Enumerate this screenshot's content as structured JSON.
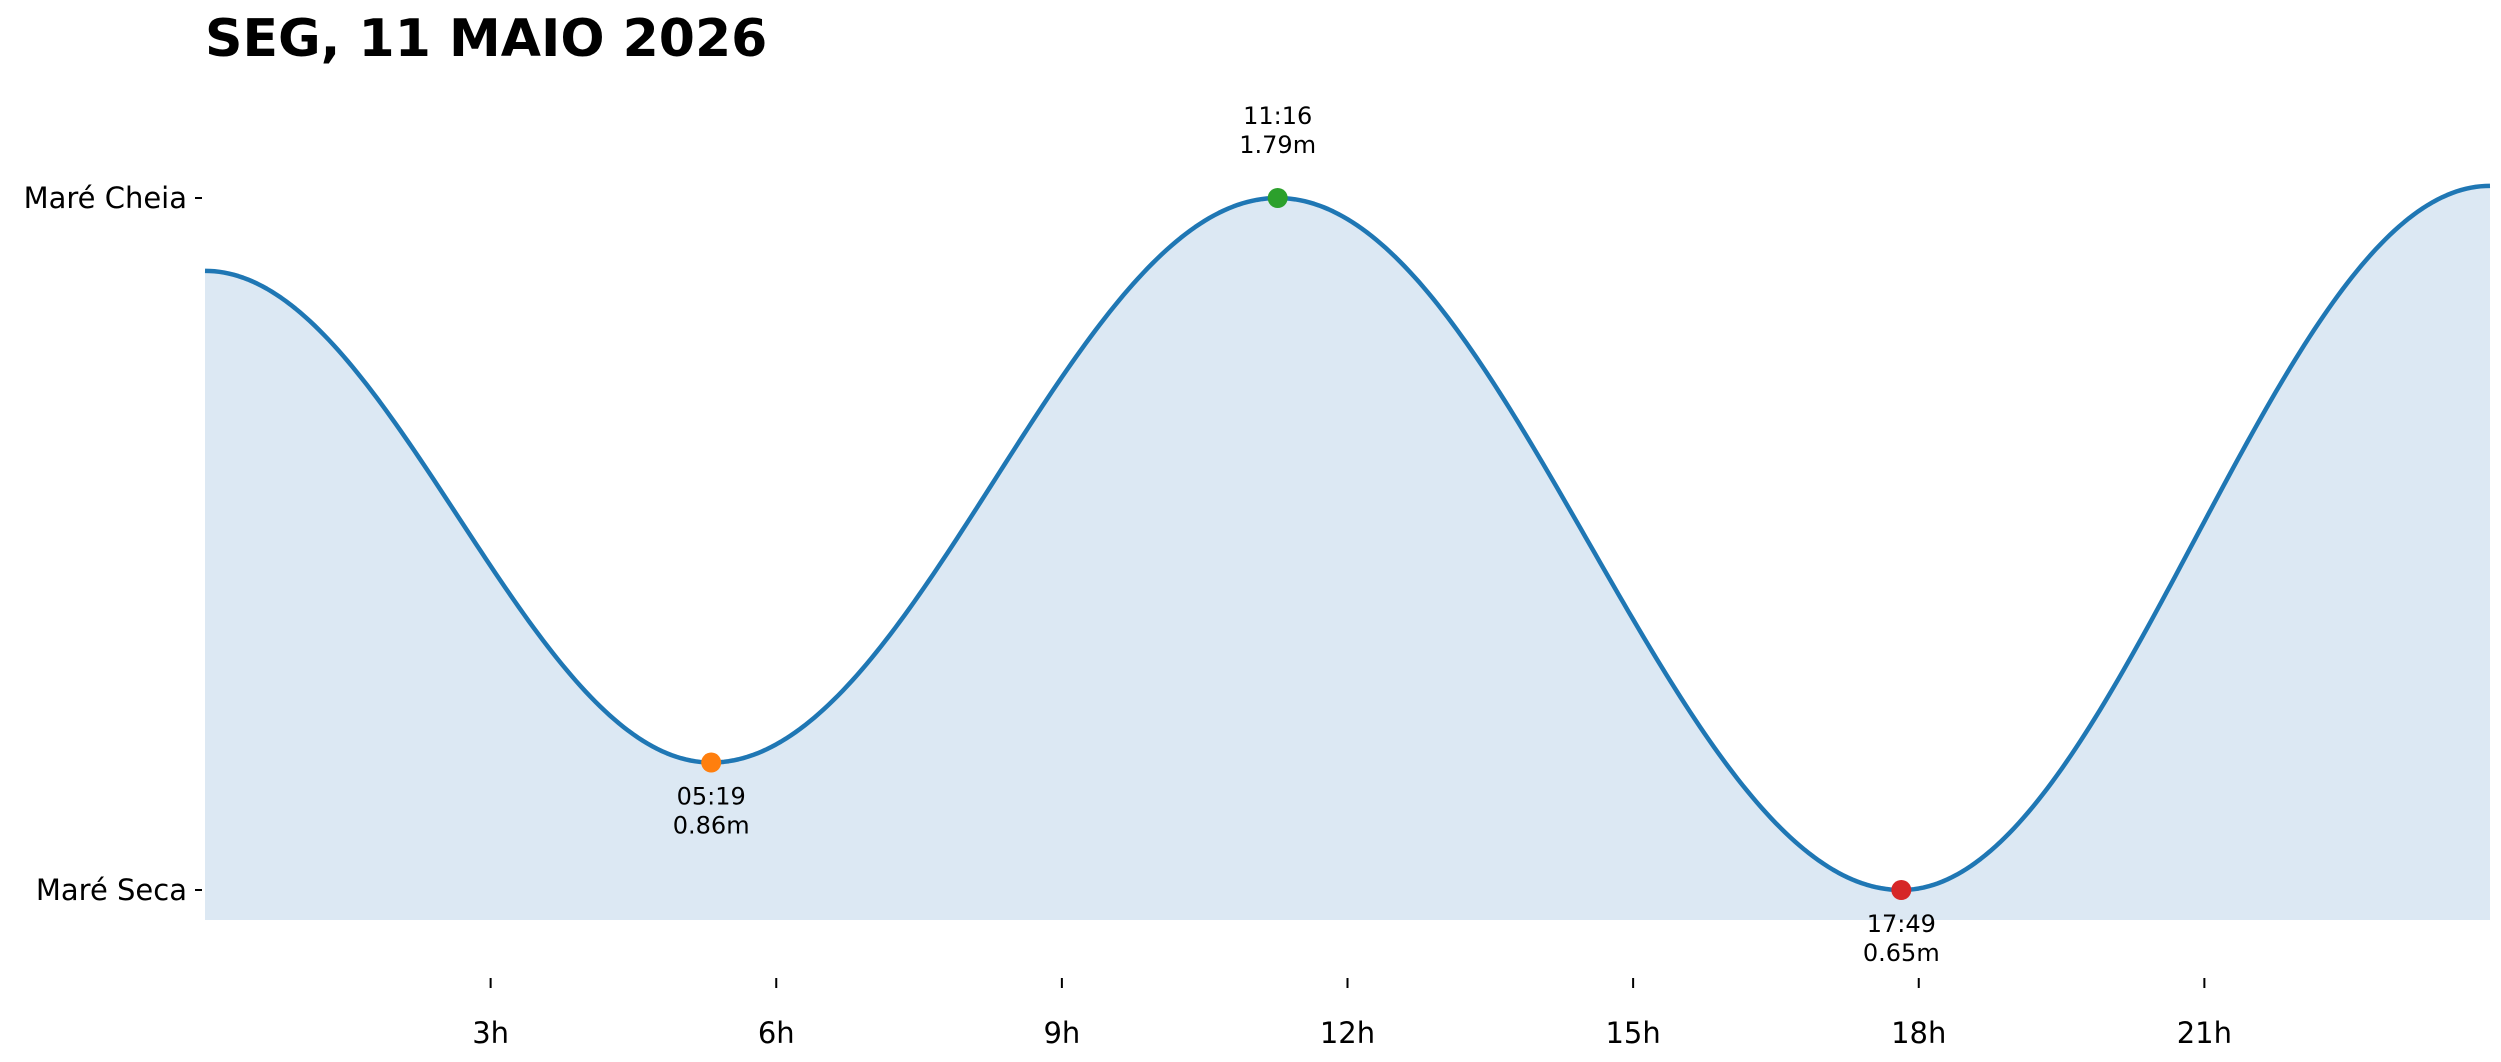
{
  "chart_data": {
    "type": "area",
    "title": "SEG, 11 MAIO 2026",
    "xlabel": "",
    "ylabel": "",
    "x_unit": "hours",
    "xlim": [
      0,
      24
    ],
    "ylim": [
      0.62,
      1.8
    ],
    "x_ticks": [
      {
        "value": 3,
        "label": "3h"
      },
      {
        "value": 6,
        "label": "6h"
      },
      {
        "value": 9,
        "label": "9h"
      },
      {
        "value": 12,
        "label": "12h"
      },
      {
        "value": 15,
        "label": "15h"
      },
      {
        "value": 18,
        "label": "18h"
      },
      {
        "value": 21,
        "label": "21h"
      }
    ],
    "y_ticks": [
      {
        "value": 1.79,
        "label": "Maré Cheia"
      },
      {
        "value": 0.65,
        "label": "Maré Seca"
      }
    ],
    "series": [
      {
        "x": [
          0,
          5.3167,
          11.2667,
          17.8167,
          24
        ],
        "y": [
          1.67,
          0.86,
          1.79,
          0.65,
          1.81
        ]
      }
    ],
    "extremes": [
      {
        "time": "05:19",
        "hour": 5.3167,
        "height": 0.86,
        "height_label": "0.86m",
        "kind": "low",
        "color": "#ff7f0e"
      },
      {
        "time": "11:16",
        "hour": 11.2667,
        "height": 1.79,
        "height_label": "1.79m",
        "kind": "high",
        "color": "#2ca02c"
      },
      {
        "time": "17:49",
        "hour": 17.8167,
        "height": 0.65,
        "height_label": "0.65m",
        "kind": "low",
        "color": "#d62728"
      }
    ],
    "line_color": "#1f77b4",
    "fill_color": "#dce8f3",
    "grid": false,
    "legend": "none"
  }
}
